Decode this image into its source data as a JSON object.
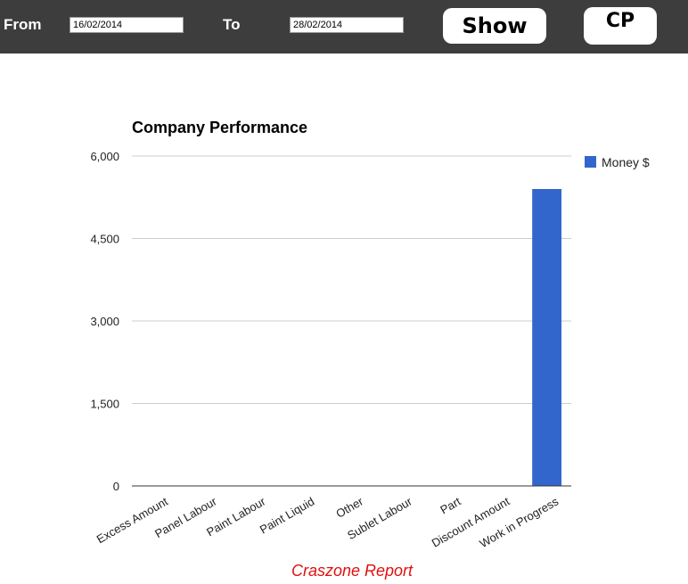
{
  "toolbar": {
    "from_label": "From",
    "from_value": "16/02/2014",
    "to_label": "To",
    "to_value": "28/02/2014",
    "show_label": "Show",
    "cp_label": "CP"
  },
  "colors": {
    "toolbar_bg": "#3d3d3d",
    "series": "#3366cc",
    "footer": "#e01010"
  },
  "footer_text": "Craszone Report",
  "chart_data": {
    "type": "bar",
    "title": "Company Performance",
    "xlabel": "",
    "ylabel": "",
    "categories": [
      "Excess Amount",
      "Panel Labour",
      "Paint Labour",
      "Paint Liquid",
      "Other",
      "Sublet Labour",
      "Part",
      "Discount Amount",
      "Work in Progress"
    ],
    "series": [
      {
        "name": "Money $",
        "color": "#3366cc",
        "values": [
          0,
          0,
          0,
          0,
          0,
          0,
          0,
          0,
          5400
        ]
      }
    ],
    "ylim": [
      0,
      6000
    ],
    "yticks": [
      0,
      1500,
      3000,
      4500,
      6000
    ],
    "ytick_labels": [
      "0",
      "1,500",
      "3,000",
      "4,500",
      "6,000"
    ],
    "grid": true,
    "legend_position": "right"
  }
}
